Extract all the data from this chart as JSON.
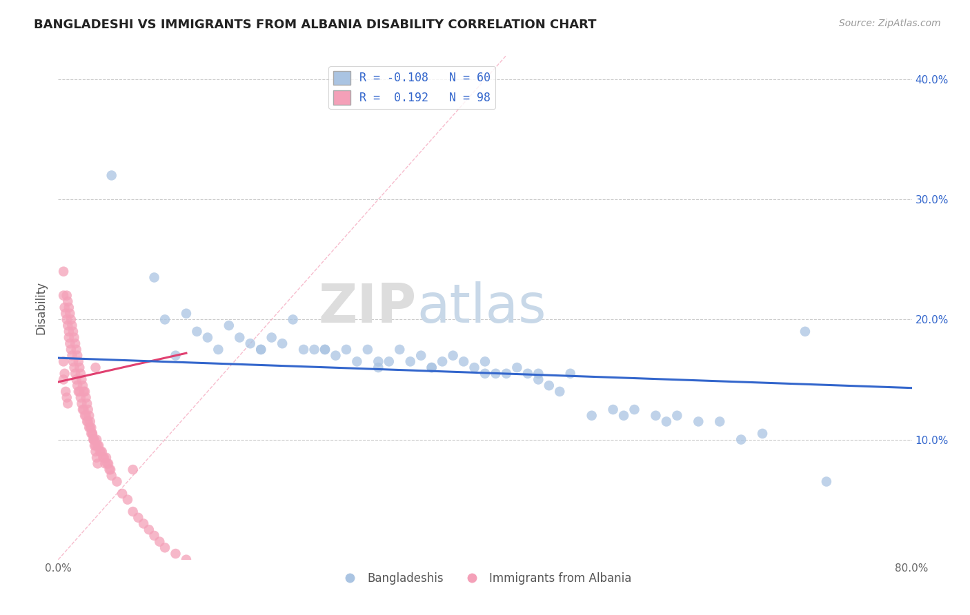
{
  "title": "BANGLADESHI VS IMMIGRANTS FROM ALBANIA DISABILITY CORRELATION CHART",
  "source": "Source: ZipAtlas.com",
  "ylabel": "Disability",
  "xlim": [
    0.0,
    0.8
  ],
  "ylim": [
    0.0,
    0.42
  ],
  "ytick_positions": [
    0.1,
    0.2,
    0.3,
    0.4
  ],
  "ytick_labels": [
    "10.0%",
    "20.0%",
    "30.0%",
    "40.0%"
  ],
  "xtick_positions": [
    0.0,
    0.8
  ],
  "xtick_labels": [
    "0.0%",
    "80.0%"
  ],
  "watermark_zip": "ZIP",
  "watermark_atlas": "atlas",
  "blue_R": "-0.108",
  "blue_N": "60",
  "pink_R": "0.192",
  "pink_N": "98",
  "blue_color": "#aac4e2",
  "pink_color": "#f4a0b8",
  "blue_scatter_x": [
    0.05,
    0.09,
    0.1,
    0.12,
    0.13,
    0.14,
    0.16,
    0.17,
    0.18,
    0.19,
    0.2,
    0.21,
    0.22,
    0.23,
    0.24,
    0.25,
    0.26,
    0.27,
    0.28,
    0.29,
    0.3,
    0.31,
    0.32,
    0.33,
    0.34,
    0.35,
    0.36,
    0.37,
    0.38,
    0.39,
    0.4,
    0.41,
    0.42,
    0.43,
    0.44,
    0.45,
    0.46,
    0.47,
    0.48,
    0.5,
    0.52,
    0.54,
    0.56,
    0.57,
    0.6,
    0.64,
    0.7,
    0.72,
    0.11,
    0.15,
    0.19,
    0.25,
    0.3,
    0.35,
    0.4,
    0.45,
    0.53,
    0.58,
    0.62,
    0.66
  ],
  "blue_scatter_y": [
    0.32,
    0.235,
    0.2,
    0.205,
    0.19,
    0.185,
    0.195,
    0.185,
    0.18,
    0.175,
    0.185,
    0.18,
    0.2,
    0.175,
    0.175,
    0.175,
    0.17,
    0.175,
    0.165,
    0.175,
    0.165,
    0.165,
    0.175,
    0.165,
    0.17,
    0.16,
    0.165,
    0.17,
    0.165,
    0.16,
    0.165,
    0.155,
    0.155,
    0.16,
    0.155,
    0.155,
    0.145,
    0.14,
    0.155,
    0.12,
    0.125,
    0.125,
    0.12,
    0.115,
    0.115,
    0.1,
    0.19,
    0.065,
    0.17,
    0.175,
    0.175,
    0.175,
    0.16,
    0.16,
    0.155,
    0.15,
    0.12,
    0.12,
    0.115,
    0.105
  ],
  "pink_scatter_x": [
    0.005,
    0.005,
    0.006,
    0.007,
    0.008,
    0.009,
    0.01,
    0.01,
    0.011,
    0.012,
    0.013,
    0.014,
    0.015,
    0.016,
    0.017,
    0.018,
    0.019,
    0.02,
    0.021,
    0.022,
    0.023,
    0.024,
    0.025,
    0.026,
    0.027,
    0.028,
    0.029,
    0.03,
    0.031,
    0.032,
    0.033,
    0.034,
    0.035,
    0.036,
    0.037,
    0.038,
    0.039,
    0.04,
    0.041,
    0.042,
    0.043,
    0.044,
    0.045,
    0.046,
    0.047,
    0.048,
    0.049,
    0.05,
    0.055,
    0.06,
    0.065,
    0.07,
    0.075,
    0.08,
    0.085,
    0.09,
    0.095,
    0.1,
    0.11,
    0.12,
    0.008,
    0.009,
    0.01,
    0.011,
    0.012,
    0.013,
    0.014,
    0.015,
    0.016,
    0.017,
    0.018,
    0.019,
    0.02,
    0.021,
    0.022,
    0.023,
    0.024,
    0.025,
    0.026,
    0.027,
    0.028,
    0.029,
    0.03,
    0.031,
    0.032,
    0.033,
    0.034,
    0.035,
    0.036,
    0.037,
    0.005,
    0.005,
    0.006,
    0.007,
    0.008,
    0.009,
    0.035,
    0.07
  ],
  "pink_scatter_y": [
    0.24,
    0.22,
    0.21,
    0.205,
    0.2,
    0.195,
    0.19,
    0.185,
    0.18,
    0.175,
    0.17,
    0.165,
    0.16,
    0.155,
    0.15,
    0.145,
    0.14,
    0.14,
    0.135,
    0.13,
    0.125,
    0.125,
    0.12,
    0.12,
    0.115,
    0.115,
    0.11,
    0.11,
    0.105,
    0.105,
    0.1,
    0.1,
    0.095,
    0.1,
    0.095,
    0.095,
    0.09,
    0.09,
    0.09,
    0.085,
    0.085,
    0.08,
    0.085,
    0.08,
    0.08,
    0.075,
    0.075,
    0.07,
    0.065,
    0.055,
    0.05,
    0.04,
    0.035,
    0.03,
    0.025,
    0.02,
    0.015,
    0.01,
    0.005,
    0.0,
    0.22,
    0.215,
    0.21,
    0.205,
    0.2,
    0.195,
    0.19,
    0.185,
    0.18,
    0.175,
    0.17,
    0.165,
    0.16,
    0.155,
    0.15,
    0.145,
    0.14,
    0.14,
    0.135,
    0.13,
    0.125,
    0.12,
    0.115,
    0.11,
    0.105,
    0.1,
    0.095,
    0.09,
    0.085,
    0.08,
    0.165,
    0.15,
    0.155,
    0.14,
    0.135,
    0.13,
    0.16,
    0.075
  ],
  "blue_trend_x": [
    0.0,
    0.8
  ],
  "blue_trend_y": [
    0.168,
    0.143
  ],
  "pink_trend_x": [
    0.0,
    0.12
  ],
  "pink_trend_y": [
    0.148,
    0.172
  ],
  "diag_line_x": [
    0.0,
    0.42
  ],
  "diag_line_y": [
    0.0,
    0.42
  ],
  "diag_color": "#f4a0b8",
  "diag_style": "--"
}
